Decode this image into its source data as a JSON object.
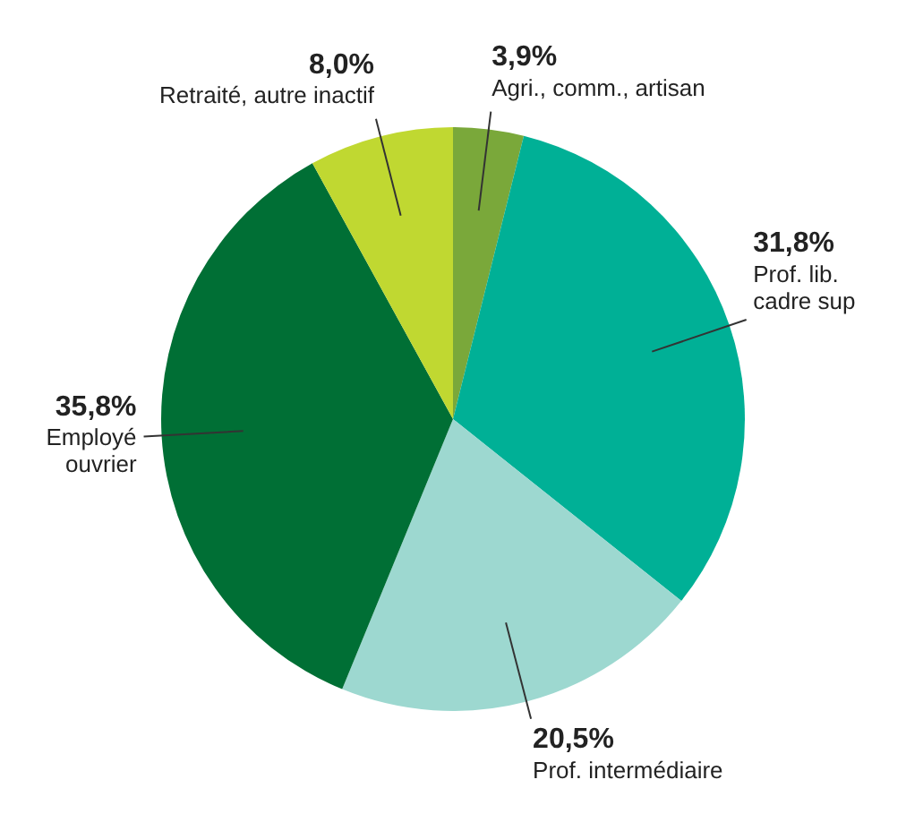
{
  "chart_data": {
    "type": "pie",
    "categories": [
      "Agri., comm., artisan",
      "Prof. lib. cadre sup",
      "Prof. intermédiaire",
      "Employé ouvrier",
      "Retraité, autre inactif"
    ],
    "values": [
      3.9,
      31.8,
      20.5,
      35.8,
      8.0
    ],
    "value_labels": [
      "3,9%",
      "31,8%",
      "20,5%",
      "35,8%",
      "8,0%"
    ],
    "colors": [
      "#7aa83a",
      "#00b096",
      "#9dd8d0",
      "#006f35",
      "#c0d831"
    ],
    "legend": false
  }
}
